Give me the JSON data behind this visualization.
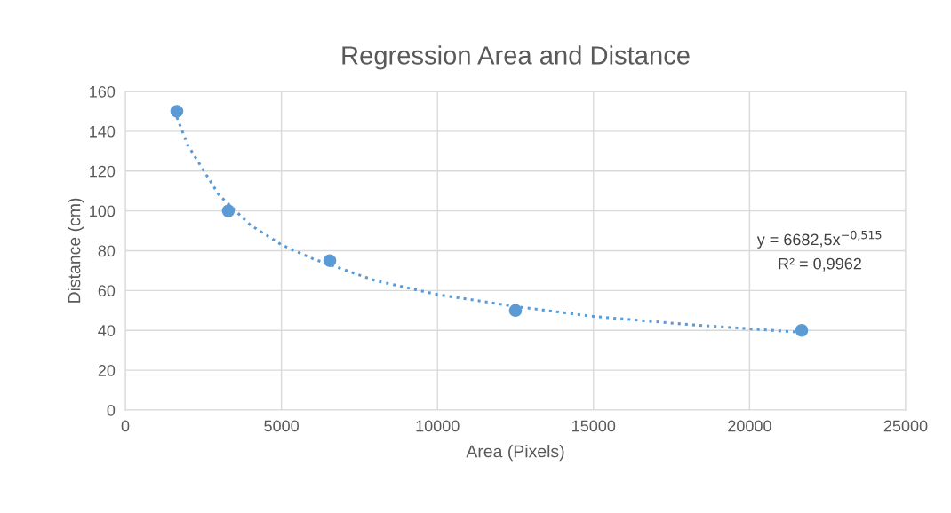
{
  "chart_data": {
    "type": "scatter",
    "title": "Regression Area and Distance",
    "xlabel": "Area (Pixels)",
    "ylabel": "Distance (cm)",
    "xlim": [
      0,
      25000
    ],
    "xticks": [
      0,
      5000,
      10000,
      15000,
      20000,
      25000
    ],
    "ylim": [
      0,
      160
    ],
    "yticks": [
      0,
      20,
      40,
      60,
      80,
      100,
      120,
      140,
      160
    ],
    "grid": true,
    "legend": false,
    "marker": "circle",
    "series": [
      {
        "color": "#5b9bd5",
        "x": [
          1650,
          3300,
          6550,
          12500,
          21670
        ],
        "values": [
          150,
          100,
          75,
          50,
          40
        ]
      },
      {
        "type": "line",
        "color": "#5b9bd5",
        "line_style": "dotted",
        "marker": "none",
        "x": [
          1650,
          2000,
          3000,
          4000,
          5000,
          6000,
          8000,
          10000,
          12500,
          15000,
          18000,
          21670
        ],
        "values": [
          147,
          133,
          108,
          93,
          83,
          76,
          65,
          58,
          52,
          47,
          43,
          39
        ]
      }
    ],
    "annotations": [
      "y = 6682,5x$^{−0,515}$",
      "R² = 0,9962"
    ]
  }
}
